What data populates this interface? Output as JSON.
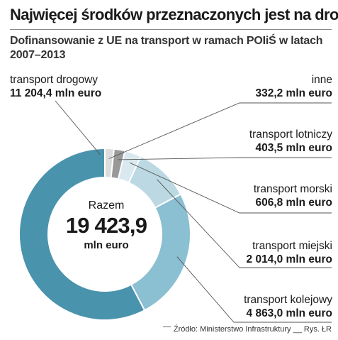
{
  "title": "Najwięcej środków przeznaczonych jest na drogi",
  "subtitle": "Dofinansowanie z UE na transport w ramach POIiŚ w latach 2007–2013",
  "center": {
    "label": "Razem",
    "value": "19 423,9",
    "unit": "mln euro"
  },
  "source": "Źródło: Ministerstwo Infrastruktury __ Rys. ŁR",
  "chart_data": {
    "type": "pie",
    "title": "Najwięcej środków przeznaczonych jest na drogi",
    "subtitle": "Dofinansowanie z UE na transport w ramach POIiŚ w latach 2007–2013",
    "unit": "mln euro",
    "total": 19423.9,
    "total_label": "19 423,9",
    "categories": [
      "transport drogowy",
      "inne",
      "transport lotniczy",
      "transport morski",
      "transport miejski",
      "transport kolejowy"
    ],
    "values": [
      11204.4,
      332.2,
      403.5,
      606.8,
      2014.0,
      4863.0
    ],
    "value_labels": [
      "11 204,4 mln euro",
      "332,2 mln euro",
      "403,5 mln euro",
      "606,8 mln euro",
      "2 014,0 mln euro",
      "4 863,0 mln euro"
    ],
    "slices": [
      {
        "name": "transport drogowy",
        "value": 11204.4,
        "value_label": "11 204,4 mln euro",
        "color": "#4a93ad"
      },
      {
        "name": "inne",
        "value": 332.2,
        "value_label": "332,2 mln euro",
        "color": "#dcdcdc"
      },
      {
        "name": "transport lotniczy",
        "value": 403.5,
        "value_label": "403,5 mln euro",
        "color": "#999999"
      },
      {
        "name": "transport morski",
        "value": 606.8,
        "value_label": "606,8 mln euro",
        "color": "#d9e9ef"
      },
      {
        "name": "transport miejski",
        "value": 2014.0,
        "value_label": "2 014,0 mln euro",
        "color": "#bcd9e3"
      },
      {
        "name": "transport kolejowy",
        "value": 4863.0,
        "value_label": "4 863,0 mln euro",
        "color": "#8bbfd2"
      }
    ]
  }
}
